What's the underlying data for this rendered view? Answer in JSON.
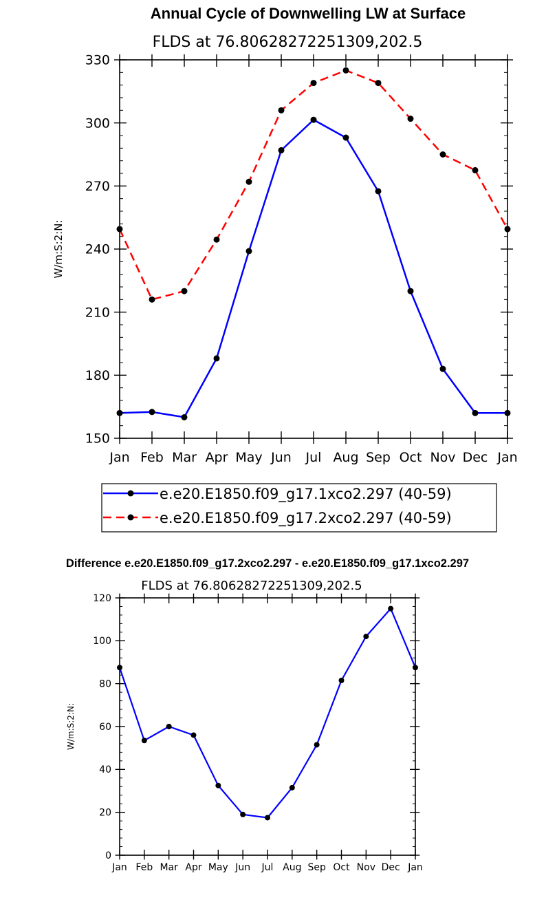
{
  "chart_data": [
    {
      "type": "line",
      "title": "Annual Cycle of Downwelling LW at Surface",
      "subtitle": "FLDS at 76.80628272251309,202.5",
      "xlabel": "",
      "ylabel": "W/m:S:2:N:",
      "categories": [
        "Jan",
        "Feb",
        "Mar",
        "Apr",
        "May",
        "Jun",
        "Jul",
        "Aug",
        "Sep",
        "Oct",
        "Nov",
        "Dec",
        "Jan"
      ],
      "ylim": [
        150,
        330
      ],
      "yticks": [
        150,
        180,
        210,
        240,
        270,
        300,
        330
      ],
      "series": [
        {
          "name": "e.e20.E1850.f09_g17.1xco2.297 (40-59)",
          "color": "#0000ff",
          "dash": "solid",
          "values": [
            162,
            162.5,
            160,
            188,
            239,
            287,
            301.5,
            293,
            267.5,
            220,
            183,
            162,
            162
          ]
        },
        {
          "name": "e.e20.E1850.f09_g17.2xco2.297 (40-59)",
          "color": "#ff0000",
          "dash": "dashed",
          "values": [
            249.5,
            216,
            220,
            244.5,
            272,
            306,
            319,
            325,
            319,
            302,
            285,
            277.5,
            249.5
          ]
        }
      ],
      "legend": "below"
    },
    {
      "type": "line",
      "title": "Difference e.e20.E1850.f09_g17.2xco2.297 - e.e20.E1850.f09_g17.1xco2.297",
      "subtitle": "FLDS at 76.80628272251309,202.5",
      "xlabel": "",
      "ylabel": "W/m:S:2:N:",
      "categories": [
        "Jan",
        "Feb",
        "Mar",
        "Apr",
        "May",
        "Jun",
        "Jul",
        "Aug",
        "Sep",
        "Oct",
        "Nov",
        "Dec",
        "Jan"
      ],
      "ylim": [
        0,
        120
      ],
      "yticks": [
        0,
        20,
        40,
        60,
        80,
        100,
        120
      ],
      "series": [
        {
          "name": "difference",
          "color": "#0000ff",
          "dash": "solid",
          "values": [
            87.5,
            53.5,
            60,
            56,
            32.5,
            19,
            17.5,
            31.5,
            51.5,
            81.5,
            102,
            115,
            87.5
          ]
        }
      ]
    }
  ]
}
